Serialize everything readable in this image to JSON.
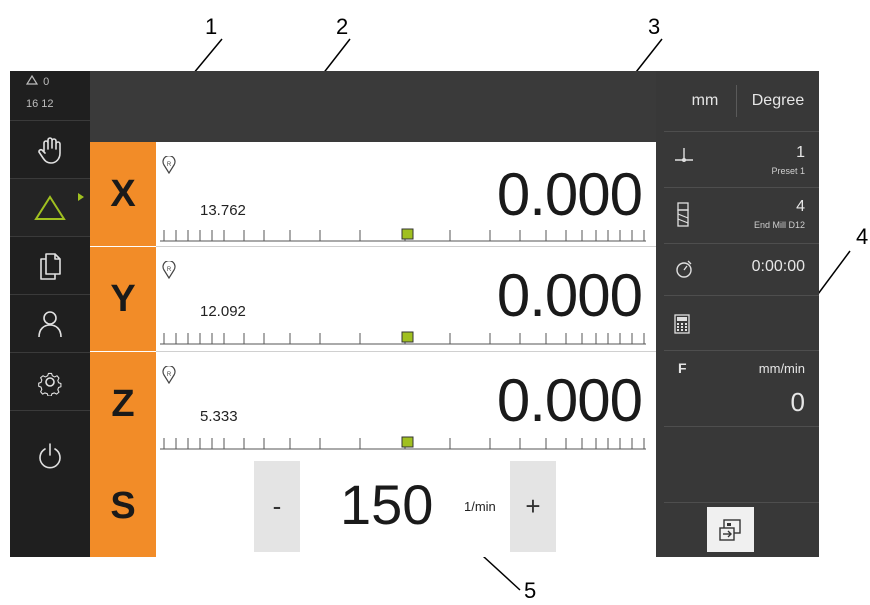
{
  "callouts": [
    "1",
    "2",
    "3",
    "4",
    "5"
  ],
  "status": {
    "delta_value": "0",
    "time": "16 12"
  },
  "sidebar": {
    "items": [
      {
        "icon": "hand-icon"
      },
      {
        "icon": "delta-icon",
        "active": true
      },
      {
        "icon": "documents-icon"
      },
      {
        "icon": "user-icon"
      },
      {
        "icon": "gear-icon"
      },
      {
        "icon": "power-icon"
      }
    ]
  },
  "axes": [
    {
      "label": "X",
      "distance": "13.762",
      "position": "0.000"
    },
    {
      "label": "Y",
      "distance": "12.092",
      "position": "0.000"
    },
    {
      "label": "Z",
      "distance": "5.333",
      "position": "0.000"
    }
  ],
  "spindle": {
    "label": "S",
    "minus": "-",
    "speed": "150",
    "unit": "1/min",
    "plus": "+"
  },
  "right_panel": {
    "unit_linear": "mm",
    "unit_angular": "Degree",
    "preset": {
      "number": "1",
      "name": "Preset 1"
    },
    "tool": {
      "number": "4",
      "name": "End Mill D12"
    },
    "timer": "0:00:00",
    "feed": {
      "label": "F",
      "unit": "mm/min",
      "value": "0"
    }
  },
  "colors": {
    "accent_orange": "#f28c28",
    "active_green": "#a0c020",
    "sidebar_bg": "#1f1f1f",
    "panel_bg": "#383838"
  }
}
